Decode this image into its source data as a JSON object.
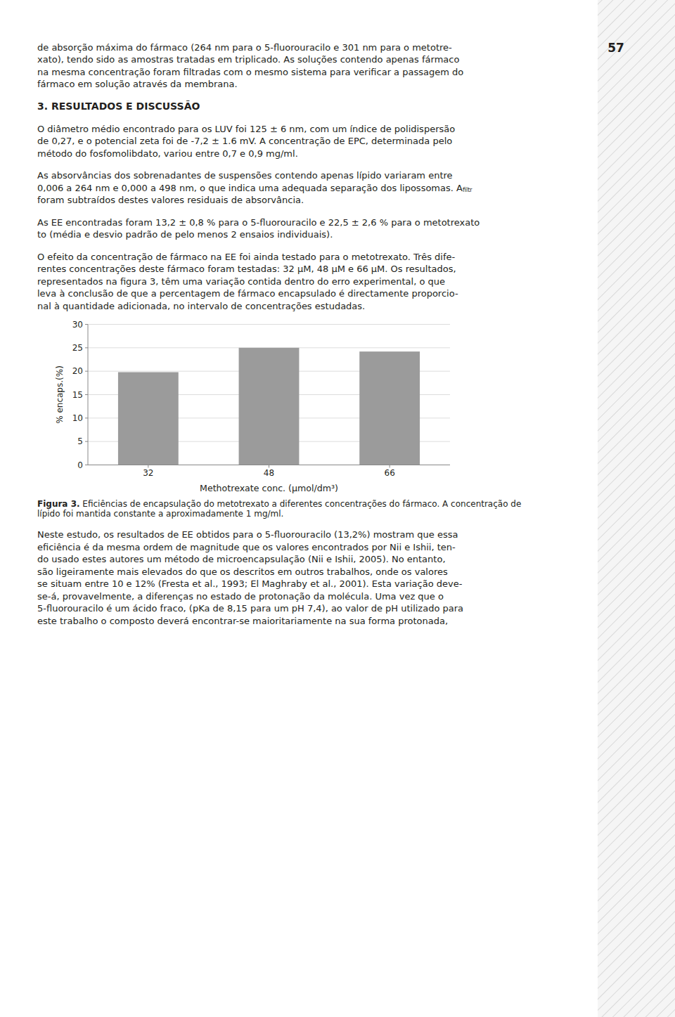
{
  "page": {
    "page_number": "57",
    "para1": [
      "de absorção máxima do fármaco (264 nm para o 5-fluorouracilo e 301 nm para o metotre-",
      "xato), tendo sido as amostras tratadas em triplicado. As soluções contendo apenas fármaco",
      "na mesma concentração foram filtradas com o mesmo sistema para verificar a passagem do",
      "fármaco em solução através da membrana."
    ],
    "section_title": "3. RESULTADOS E DISCUSSÃO",
    "para2": [
      "O diâmetro médio encontrado para os LUV foi 125 ± 6 nm, com um índice de polidispersão",
      "de 0,27, e o potencial zeta foi de -7,2 ± 1.6 mV. A concentração de EPC, determinada pelo",
      "método do fosfomolibdato, variou entre 0,7 e 0,9 mg/ml."
    ],
    "para3": [
      "As absorvâncias dos sobrenadantes de suspensões contendo apenas lípido variaram entre",
      "0,006 a 264 nm e 0,000 a 498 nm, o que indica uma adequada separação dos lipossomas. A",
      "foram subtraídos destes valores residuais de absorvância."
    ],
    "para3_subscript": "filtr",
    "para4": [
      "As EE encontradas foram 13,2 ± 0,8 % para o 5-fluorouracilo e 22,5 ± 2,6 % para o metotrexato",
      "to (média e desvio padrão de pelo menos 2 ensaios individuais)."
    ],
    "para5": [
      "O efeito da concentração de fármaco na EE foi ainda testado para o metotrexato. Três dife-",
      "rentes concentrações deste fármaco foram testadas: 32 μM, 48 μM e 66 μM. Os resultados,",
      "representados na figura 3, têm uma variação contida dentro do erro experimental, o que",
      "leva à conclusão de que a percentagem de fármaco encapsulado é directamente proporcio-",
      "nal à quantidade adicionada, no intervalo de concentrações estudadas."
    ],
    "caption_bold": "Figura 3.",
    "caption_rest": " Eficiências de encapsulação do metotrexato a diferentes concentrações do fármaco. A concentração de",
    "caption_line2": "lípido foi mantida constante a aproximadamente 1 mg/ml.",
    "para6": [
      "Neste estudo, os resultados de EE obtidos para o 5-fluorouracilo (13,2%) mostram que essa",
      "eficiência é da mesma ordem de magnitude que os valores encontrados por Nii e Ishii, ten-",
      "do usado estes autores um método de microencapsulação (Nii e Ishii, 2005). No entanto,",
      "são ligeiramente mais elevados do que os descritos em outros trabalhos, onde os valores",
      "se situam entre 10 e 12% (Fresta et al., 1993; El Maghraby et al., 2001). Esta variação deve-",
      "se-á, provavelmente, a diferenças no estado de protonação da molécula. Uma vez que o",
      "5-fluorouracilo é um ácido fraco, (pKa de 8,15 para um pH 7,4), ao valor de pH utilizado para",
      "este trabalho o composto deverá encontrar-se maioritariamente na sua forma protonada,"
    ]
  },
  "chart_data": {
    "type": "bar",
    "categories": [
      "32",
      "48",
      "66"
    ],
    "values": [
      19.8,
      25.0,
      24.2
    ],
    "color": "#9b9b9b",
    "ylim": [
      0,
      30
    ],
    "yticks": [
      0,
      5,
      10,
      15,
      20,
      25,
      30
    ],
    "ylabel": "% encaps.(%)",
    "xlabel": "Methotrexate conc. (μmol/dm³)",
    "grid": true
  }
}
